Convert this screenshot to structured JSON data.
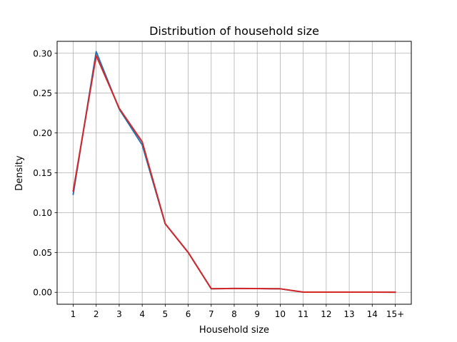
{
  "chart_data": {
    "type": "line",
    "title": "Distribution of household size",
    "xlabel": "Household size",
    "ylabel": "Density",
    "categories": [
      "1",
      "2",
      "3",
      "4",
      "5",
      "6",
      "7",
      "8",
      "9",
      "10",
      "11",
      "12",
      "13",
      "14",
      "15+"
    ],
    "ylim": [
      -0.015,
      0.315
    ],
    "yticks": [
      0.0,
      0.05,
      0.1,
      0.15,
      0.2,
      0.25,
      0.3
    ],
    "ytick_labels": [
      "0.00",
      "0.05",
      "0.10",
      "0.15",
      "0.20",
      "0.25",
      "0.30"
    ],
    "grid": true,
    "legend": "none",
    "series": [
      {
        "color": "#1f77b4",
        "values": [
          0.123,
          0.302,
          0.23,
          0.185,
          0.086,
          0.05,
          0.0045,
          0.0048,
          0.0047,
          0.0044,
          0.0002,
          0.0002,
          0.0002,
          0.0002,
          0.0001
        ]
      },
      {
        "color": "#d62728",
        "values": [
          0.127,
          0.297,
          0.231,
          0.189,
          0.086,
          0.05,
          0.0045,
          0.0048,
          0.0047,
          0.0044,
          0.0002,
          0.0002,
          0.0002,
          0.0002,
          0.0001
        ]
      }
    ]
  }
}
